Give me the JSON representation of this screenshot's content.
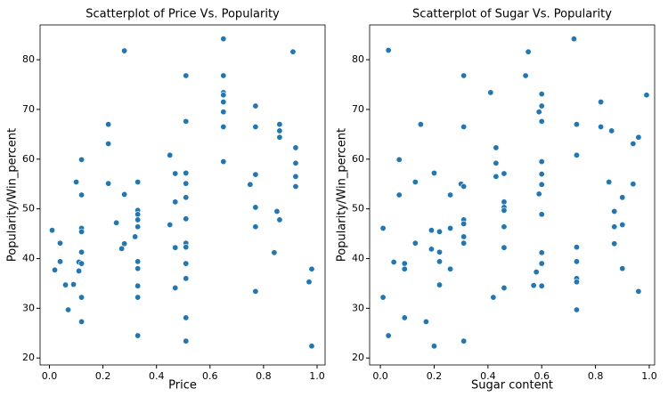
{
  "chart_data": [
    {
      "type": "scatter",
      "title": "Scatterplot of Price Vs. Popularity",
      "x_label": "Price",
      "y_label": "Popularity/Win_percent",
      "color": "#1f77b4",
      "x": [
        0.01,
        0.02,
        0.04,
        0.04,
        0.06,
        0.07,
        0.09,
        0.1,
        0.11,
        0.11,
        0.12,
        0.12,
        0.12,
        0.12,
        0.12,
        0.12,
        0.12,
        0.12,
        0.22,
        0.22,
        0.22,
        0.25,
        0.28,
        0.27,
        0.28,
        0.28,
        0.32,
        0.33,
        0.33,
        0.33,
        0.33,
        0.33,
        0.33,
        0.33,
        0.33,
        0.33,
        0.33,
        0.45,
        0.45,
        0.47,
        0.47,
        0.47,
        0.47,
        0.51,
        0.51,
        0.51,
        0.51,
        0.51,
        0.51,
        0.51,
        0.51,
        0.51,
        0.51,
        0.51,
        0.51,
        0.65,
        0.65,
        0.65,
        0.65,
        0.65,
        0.65,
        0.65,
        0.65,
        0.75,
        0.77,
        0.77,
        0.77,
        0.77,
        0.77,
        0.77,
        0.84,
        0.85,
        0.86,
        0.86,
        0.86,
        0.86,
        0.91,
        0.92,
        0.92,
        0.92,
        0.92,
        0.97,
        0.98,
        0.98
      ],
      "y": [
        45.7,
        37.7,
        43.1,
        39.4,
        34.7,
        29.7,
        34.8,
        55.4,
        39.3,
        37.5,
        59.9,
        52.8,
        46.1,
        45.4,
        41.3,
        39.0,
        32.2,
        27.3,
        67,
        63.1,
        55.1,
        47.2,
        81.8,
        42,
        43,
        52.9,
        44.4,
        49.7,
        48.9,
        55.4,
        46.4,
        47.8,
        39.4,
        38.0,
        34.5,
        32.2,
        24.5,
        60.8,
        46.8,
        57.1,
        51.4,
        42.2,
        34.1,
        76.8,
        67.6,
        57.2,
        55.1,
        52.3,
        48.0,
        43.1,
        42.3,
        39.0,
        36.0,
        28.1,
        23.4,
        84.2,
        76.8,
        73.4,
        72.9,
        71.5,
        69.5,
        66.5,
        59.5,
        54.9,
        70.7,
        66.5,
        56.9,
        50.3,
        46.4,
        33.4,
        41.2,
        49.5,
        47.8,
        67.0,
        65.7,
        64.4,
        81.6,
        62.3,
        59.2,
        56.5,
        54.5,
        35.3,
        37.9,
        22.4
      ],
      "xlim": [
        -0.035,
        1.03
      ],
      "ylim": [
        18.6,
        87
      ],
      "xticks": [
        {
          "value": 0,
          "label": "0.0"
        },
        0.2,
        0.4,
        0.6,
        0.8,
        {
          "value": 1,
          "label": "1.0"
        }
      ],
      "yticks": [
        20,
        30,
        40,
        50,
        60,
        70,
        80
      ]
    },
    {
      "type": "scatter",
      "title": "Scatterplot of Sugar Vs. Popularity",
      "x_label": "Sugar content",
      "y_label": "Popularity/Win_percent",
      "color": "#1f77b4",
      "x": [
        0.01,
        0.01,
        0.03,
        0.03,
        0.05,
        0.07,
        0.07,
        0.09,
        0.09,
        0.09,
        0.13,
        0.13,
        0.15,
        0.17,
        0.19,
        0.19,
        0.2,
        0.2,
        0.22,
        0.22,
        0.22,
        0.22,
        0.26,
        0.26,
        0.26,
        0.3,
        0.31,
        0.31,
        0.31,
        0.31,
        0.31,
        0.31,
        0.31,
        0.31,
        0.41,
        0.42,
        0.43,
        0.43,
        0.43,
        0.46,
        0.46,
        0.46,
        0.46,
        0.46,
        0.46,
        0.46,
        0.54,
        0.55,
        0.57,
        0.58,
        0.59,
        0.59,
        0.6,
        0.6,
        0.6,
        0.6,
        0.6,
        0.6,
        0.6,
        0.6,
        0.6,
        0.6,
        0.72,
        0.73,
        0.73,
        0.73,
        0.73,
        0.73,
        0.73,
        0.73,
        0.82,
        0.82,
        0.85,
        0.86,
        0.87,
        0.87,
        0.87,
        0.9,
        0.9,
        0.9,
        0.94,
        0.94,
        0.96,
        0.96,
        0.99
      ],
      "y": [
        46.1,
        32.2,
        81.9,
        24.5,
        39.3,
        59.9,
        52.8,
        39.0,
        37.9,
        28.1,
        55.4,
        43.1,
        67,
        27.3,
        45.7,
        41.9,
        57.2,
        22.4,
        45.4,
        41.3,
        39.4,
        34.7,
        52.8,
        46.1,
        37.9,
        55.0,
        54.5,
        47.8,
        47.0,
        44.4,
        43.1,
        23.4,
        76.8,
        66.5,
        73.4,
        32.2,
        62.3,
        59.2,
        56.5,
        57.1,
        51.4,
        50.3,
        49.7,
        46.4,
        42.2,
        34.1,
        76.8,
        81.6,
        34.6,
        37.3,
        69.5,
        53.0,
        73.1,
        70.7,
        67.6,
        59.5,
        57.0,
        54.9,
        48.9,
        41.2,
        39.0,
        34.5,
        84.2,
        67.0,
        60.8,
        42.3,
        39.4,
        36.0,
        35.3,
        29.7,
        71.5,
        66.5,
        55.4,
        65.7,
        49.5,
        46.4,
        43.0,
        52.3,
        46.8,
        38.0,
        63.1,
        55.0,
        64.4,
        33.4,
        72.9
      ],
      "xlim": [
        -0.04,
        1.02
      ],
      "ylim": [
        18.6,
        87
      ],
      "xticks": [
        {
          "value": 0,
          "label": "0.0"
        },
        0.2,
        0.4,
        0.6,
        0.8,
        {
          "value": 1,
          "label": "1.0"
        }
      ],
      "yticks": [
        20,
        30,
        40,
        50,
        60,
        70,
        80
      ]
    }
  ]
}
